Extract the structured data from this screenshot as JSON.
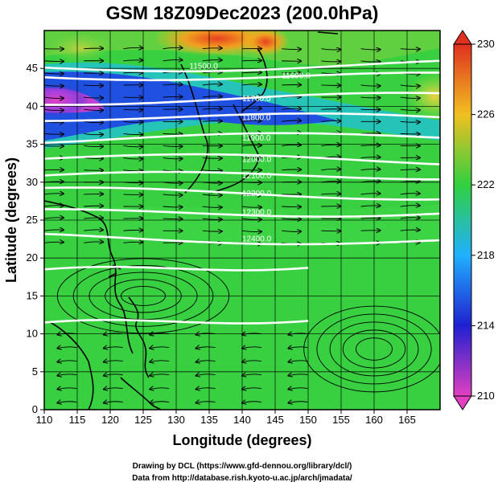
{
  "title": "GSM 18Z09Dec2023 (200.0hPa)",
  "axes": {
    "xlabel": "Longitude (degrees)",
    "ylabel": "Latitude (degrees)",
    "xticks": [
      "110",
      "115",
      "120",
      "125",
      "130",
      "135",
      "140",
      "145",
      "150",
      "155",
      "160",
      "165"
    ],
    "yticks": [
      "0",
      "5",
      "10",
      "15",
      "20",
      "25",
      "30",
      "35",
      "40",
      "45"
    ]
  },
  "colorbar": {
    "ticks": [
      "210",
      "214",
      "218",
      "222",
      "226",
      "230"
    ],
    "colors": [
      "#e040c0",
      "#2020d0",
      "#20b0ff",
      "#30d040",
      "#f0c020",
      "#e03020"
    ]
  },
  "credits": {
    "line1": "Drawing by DCL (https://www.gfd-dennou.org/library/dcl/)",
    "line2": "Data from http://database.rish.kyoto-u.ac.jp/arch/jmadata/"
  },
  "chart_data": {
    "type": "heatmap",
    "title": "GSM 18Z09Dec2023 (200.0hPa)",
    "xlabel": "Longitude (degrees)",
    "ylabel": "Latitude (degrees)",
    "xlim": [
      110,
      170
    ],
    "ylim": [
      0,
      50
    ],
    "colorbar_range": [
      210,
      230
    ],
    "grid": true,
    "contours": [
      {
        "label": "11500.0",
        "lat": 45.3
      },
      {
        "label": "11600.0",
        "lat": 44.0
      },
      {
        "label": "11700.0",
        "lat": 41.0
      },
      {
        "label": "11800.0",
        "lat": 38.5
      },
      {
        "label": "11900.0",
        "lat": 35.8
      },
      {
        "label": "12000.0",
        "lat": 33.0
      },
      {
        "label": "12100.0",
        "lat": 30.8
      },
      {
        "label": "12200.0",
        "lat": 28.5
      },
      {
        "label": "12300.0",
        "lat": 26.0
      },
      {
        "label": "12400.0",
        "lat": 22.5
      }
    ]
  }
}
